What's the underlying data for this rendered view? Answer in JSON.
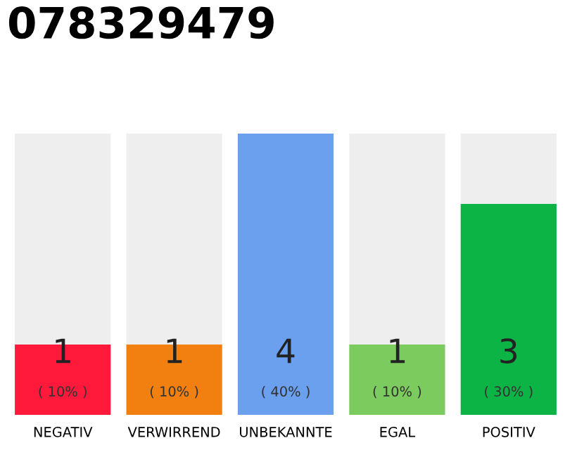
{
  "chart_data": {
    "type": "bar",
    "title": "078329479",
    "stacked": true,
    "ylim": [
      0,
      4
    ],
    "categories": [
      "NEGATIV",
      "VERWIRREND",
      "UNBEKANNTE",
      "EGAL",
      "POSITIV"
    ],
    "series": [
      {
        "colors": [
          "#ff1a3c",
          "#f28010",
          "#6aa0ee",
          "#7ccb5e",
          "#0cb446"
        ],
        "values": [
          1,
          1,
          4,
          1,
          3
        ],
        "value_labels": [
          "1\n( 10% )",
          "1\n( 10% )",
          "4\n( 40% )",
          "1\n( 10% )",
          "3\n( 30% )"
        ]
      },
      {
        "color": "#eeeeee",
        "values": [
          3,
          3,
          0,
          3,
          1
        ]
      }
    ]
  }
}
